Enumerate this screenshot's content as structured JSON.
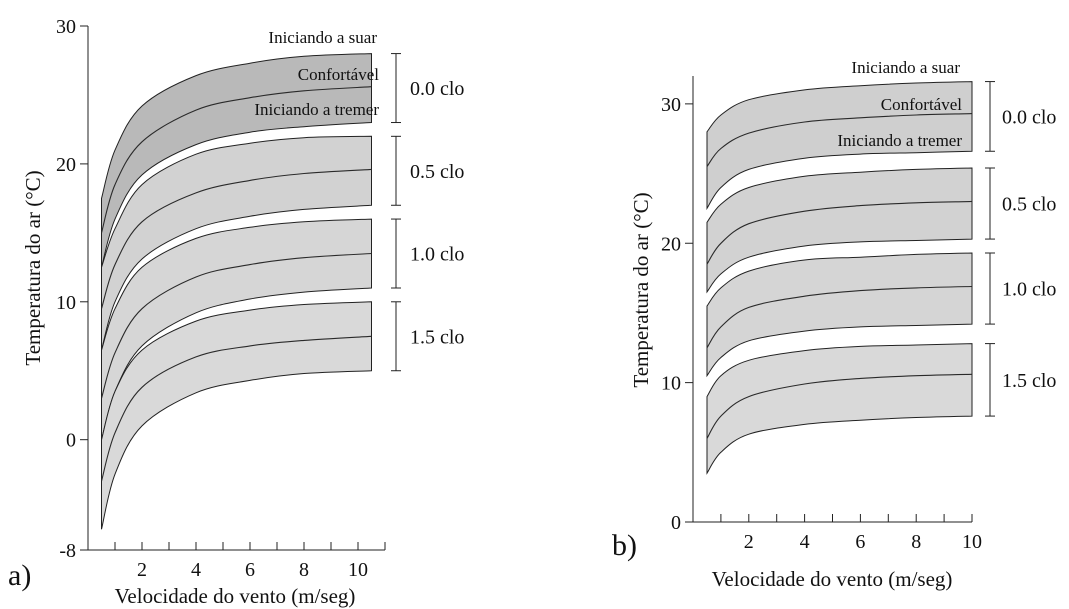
{
  "chart_data": [
    {
      "type": "area",
      "panel_label": "a)",
      "xlabel": "Velocidade do vento (m/seg)",
      "ylabel": "Temperatura do ar (°C)",
      "xlim": [
        0,
        11
      ],
      "ylim": [
        -8,
        30
      ],
      "x_ticks": [
        2,
        4,
        6,
        8,
        10
      ],
      "y_ticks": [
        -8,
        0,
        10,
        20,
        30
      ],
      "x_minor_ticks": [
        1,
        2,
        3,
        4,
        5,
        6,
        7,
        8,
        9,
        10,
        11
      ],
      "curve_labels": {
        "upper": "Iniciando a suar",
        "middle": "Confortável",
        "lower": "Iniciando a tremer"
      },
      "series": [
        {
          "name": "0.0 clo",
          "color": "#b9b9b9",
          "upper": {
            "x": [
              0.5,
              1,
              2,
              4,
              6,
              8,
              10.5
            ],
            "y": [
              17.5,
              21,
              24.2,
              26.4,
              27.3,
              27.8,
              28
            ]
          },
          "middle": {
            "x": [
              0.5,
              1,
              2,
              4,
              6,
              8,
              10.5
            ],
            "y": [
              15,
              18.5,
              21.6,
              23.9,
              24.8,
              25.3,
              25.6
            ]
          },
          "lower": {
            "x": [
              0.5,
              1,
              2,
              4,
              6,
              8,
              10.5
            ],
            "y": [
              12.5,
              16,
              19.2,
              21.4,
              22.3,
              22.7,
              23
            ]
          }
        },
        {
          "name": "0.5 clo",
          "color": "#d2d2d2",
          "upper": {
            "x": [
              0.5,
              1,
              2,
              4,
              6,
              8,
              10.5
            ],
            "y": [
              12.5,
              15.3,
              18.5,
              20.7,
              21.5,
              21.9,
              22
            ]
          },
          "middle": {
            "x": [
              0.5,
              1,
              2,
              4,
              6,
              8,
              10.5
            ],
            "y": [
              9.5,
              12.7,
              15.8,
              17.9,
              18.8,
              19.3,
              19.6
            ]
          },
          "lower": {
            "x": [
              0.5,
              1,
              2,
              4,
              6,
              8,
              10.5
            ],
            "y": [
              6.5,
              10,
              13.1,
              15.3,
              16.2,
              16.7,
              17
            ]
          }
        },
        {
          "name": "1.0 clo",
          "color": "#d6d6d6",
          "upper": {
            "x": [
              0.5,
              1,
              2,
              4,
              6,
              8,
              10.5
            ],
            "y": [
              6.5,
              9.5,
              12.5,
              14.6,
              15.4,
              15.8,
              16
            ]
          },
          "middle": {
            "x": [
              0.5,
              1,
              2,
              4,
              6,
              8,
              10.5
            ],
            "y": [
              3,
              6.3,
              9.5,
              11.8,
              12.7,
              13.2,
              13.5
            ]
          },
          "lower": {
            "x": [
              0.5,
              1,
              2,
              4,
              6,
              8,
              10.5
            ],
            "y": [
              0,
              3.5,
              6.8,
              9.2,
              10.2,
              10.7,
              11
            ]
          }
        },
        {
          "name": "1.5 clo",
          "color": "#d9d9d9",
          "upper": {
            "x": [
              0.5,
              1,
              2,
              4,
              6,
              8,
              10.5
            ],
            "y": [
              0,
              3.5,
              6.5,
              8.6,
              9.4,
              9.8,
              10
            ]
          },
          "middle": {
            "x": [
              0.5,
              1,
              2,
              4,
              6,
              8,
              10.5
            ],
            "y": [
              -3,
              0.5,
              3.8,
              6,
              6.8,
              7.2,
              7.5
            ]
          },
          "lower": {
            "x": [
              0.5,
              1,
              2,
              4,
              6,
              8,
              10.5
            ],
            "y": [
              -6.5,
              -2.5,
              1,
              3.4,
              4.3,
              4.8,
              5
            ]
          }
        }
      ]
    },
    {
      "type": "area",
      "panel_label": "b)",
      "xlabel": "Velocidade do vento (m/seg)",
      "ylabel": "Temperatura do ar (°C)",
      "xlim": [
        0,
        10
      ],
      "ylim": [
        0,
        32
      ],
      "x_ticks": [
        2,
        4,
        6,
        8,
        10
      ],
      "y_ticks": [
        0,
        10,
        20,
        30
      ],
      "x_minor_ticks": [
        1,
        2,
        3,
        4,
        5,
        6,
        7,
        8,
        9,
        10
      ],
      "curve_labels": {
        "upper": "Iniciando a suar",
        "middle": "Confortável",
        "lower": "Iniciando a tremer"
      },
      "series": [
        {
          "name": "0.0 clo",
          "color": "#cfcfcf",
          "upper": {
            "x": [
              0.5,
              1,
              2,
              4,
              6,
              8,
              10
            ],
            "y": [
              28,
              29.2,
              30.3,
              31,
              31.3,
              31.5,
              31.6
            ]
          },
          "middle": {
            "x": [
              0.5,
              1,
              2,
              4,
              6,
              8,
              10
            ],
            "y": [
              25.5,
              26.8,
              27.9,
              28.7,
              29,
              29.2,
              29.3
            ]
          },
          "lower": {
            "x": [
              0.5,
              1,
              2,
              4,
              6,
              8,
              10
            ],
            "y": [
              22.5,
              24,
              25.3,
              26.1,
              26.4,
              26.5,
              26.6
            ]
          }
        },
        {
          "name": "0.5 clo",
          "color": "#d2d2d2",
          "upper": {
            "x": [
              0.5,
              1,
              2,
              4,
              6,
              8,
              10
            ],
            "y": [
              21.5,
              22.8,
              24,
              24.8,
              25.1,
              25.3,
              25.4
            ]
          },
          "middle": {
            "x": [
              0.5,
              1,
              2,
              4,
              6,
              8,
              10
            ],
            "y": [
              18.5,
              20,
              21.4,
              22.3,
              22.7,
              22.9,
              23
            ]
          },
          "lower": {
            "x": [
              0.5,
              1,
              2,
              4,
              6,
              8,
              10
            ],
            "y": [
              16.5,
              17.8,
              19,
              19.8,
              20.1,
              20.2,
              20.3
            ]
          }
        },
        {
          "name": "1.0 clo",
          "color": "#d5d5d5",
          "upper": {
            "x": [
              0.5,
              1,
              2,
              4,
              6,
              8,
              10
            ],
            "y": [
              15.5,
              16.8,
              18,
              18.8,
              19,
              19.2,
              19.3
            ]
          },
          "middle": {
            "x": [
              0.5,
              1,
              2,
              4,
              6,
              8,
              10
            ],
            "y": [
              12.5,
              14,
              15.4,
              16.2,
              16.6,
              16.8,
              16.9
            ]
          },
          "lower": {
            "x": [
              0.5,
              1,
              2,
              4,
              6,
              8,
              10
            ],
            "y": [
              10.5,
              11.8,
              13,
              13.7,
              14,
              14.1,
              14.2
            ]
          }
        },
        {
          "name": "1.5 clo",
          "color": "#d9d9d9",
          "upper": {
            "x": [
              0.5,
              1,
              2,
              4,
              6,
              8,
              10
            ],
            "y": [
              9,
              10.5,
              11.6,
              12.3,
              12.6,
              12.7,
              12.8
            ]
          },
          "middle": {
            "x": [
              0.5,
              1,
              2,
              4,
              6,
              8,
              10
            ],
            "y": [
              6,
              7.6,
              9,
              9.9,
              10.3,
              10.5,
              10.6
            ]
          },
          "lower": {
            "x": [
              0.5,
              1,
              2,
              4,
              6,
              8,
              10
            ],
            "y": [
              3.5,
              5,
              6.3,
              7,
              7.3,
              7.5,
              7.6
            ]
          }
        }
      ]
    }
  ]
}
